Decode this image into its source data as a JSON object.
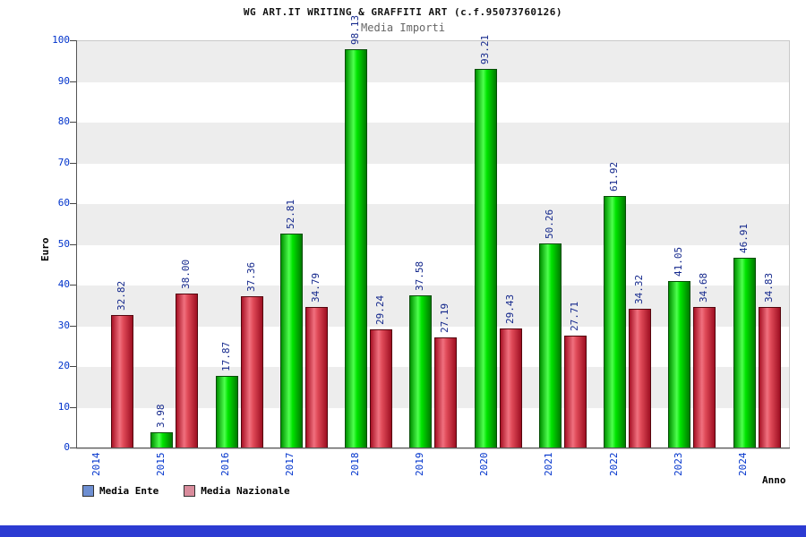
{
  "chart_data": {
    "type": "bar",
    "title": "WG ART.IT WRITING & GRAFFITI ART (c.f.95073760126)",
    "subtitle": "Media Importi",
    "xlabel": "Anno",
    "ylabel": "Euro",
    "ylim": [
      0,
      100
    ],
    "ytick_step": 10,
    "grid": "alternating-horizontal-bands",
    "legend_position": "bottom-left",
    "categories": [
      "2014",
      "2015",
      "2016",
      "2017",
      "2018",
      "2019",
      "2020",
      "2021",
      "2022",
      "2023",
      "2024"
    ],
    "series": [
      {
        "name": "Media Ente",
        "color": "#00cc00",
        "values": [
          null,
          3.98,
          17.87,
          52.81,
          98.13,
          37.58,
          93.21,
          50.26,
          61.92,
          41.05,
          46.91
        ]
      },
      {
        "name": "Media Nazionale",
        "color": "#d23046",
        "values": [
          32.82,
          38.0,
          37.36,
          34.79,
          29.24,
          27.19,
          29.43,
          27.71,
          34.32,
          34.68,
          34.83
        ]
      }
    ]
  },
  "axis": {
    "y_ticks": [
      "0",
      "10",
      "20",
      "30",
      "40",
      "50",
      "60",
      "70",
      "80",
      "90",
      "100"
    ]
  },
  "legend": [
    {
      "label": "Media Ente",
      "swatch_color": "#6e8fd2"
    },
    {
      "label": "Media Nazionale",
      "swatch_color": "#d98c9c"
    }
  ],
  "colors": {
    "band": "#ededed",
    "axis_text": "#0033cc",
    "value_label": "#14288c",
    "footer_bar": "#2c3bd2"
  }
}
